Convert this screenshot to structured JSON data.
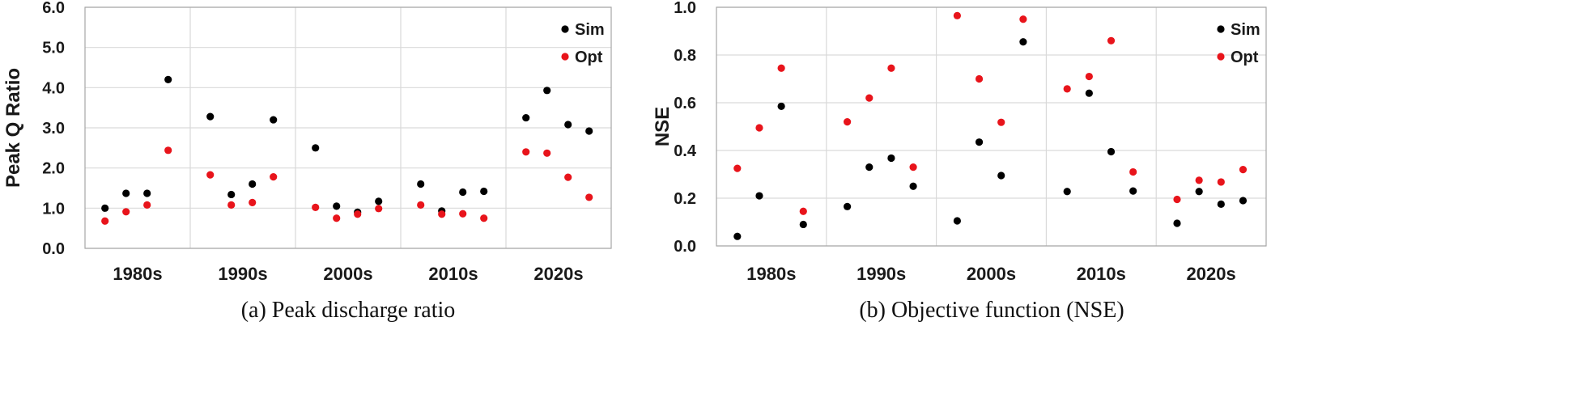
{
  "chart_data": [
    {
      "type": "scatter",
      "caption": "(a) Peak discharge ratio",
      "ylabel": "Peak Q Ratio",
      "ylim": [
        0,
        6
      ],
      "yticks": [
        "0.0",
        "1.0",
        "2.0",
        "3.0",
        "4.0",
        "5.0",
        "6.0"
      ],
      "grid": true,
      "legend_position": "top-right",
      "categories": [
        "1980s",
        "1990s",
        "2000s",
        "2010s",
        "2020s"
      ],
      "series": [
        {
          "name": "Sim",
          "color": "#000000",
          "values": [
            [
              1.0,
              1.37,
              1.37,
              4.2
            ],
            [
              3.28,
              1.34,
              1.6,
              3.2
            ],
            [
              2.5,
              1.05,
              0.9,
              1.17
            ],
            [
              1.6,
              0.93,
              1.4,
              1.42
            ],
            [
              3.25,
              3.93,
              3.08,
              2.92
            ]
          ]
        },
        {
          "name": "Opt",
          "color": "#e8141b",
          "values": [
            [
              0.68,
              0.91,
              1.08,
              2.44
            ],
            [
              1.83,
              1.08,
              1.14,
              1.78
            ],
            [
              1.02,
              0.75,
              0.85,
              0.99
            ],
            [
              1.08,
              0.85,
              0.86,
              0.75
            ],
            [
              2.4,
              2.37,
              1.77,
              1.27
            ]
          ]
        }
      ]
    },
    {
      "type": "scatter",
      "caption": "(b) Objective function (NSE)",
      "ylabel": "NSE",
      "ylim": [
        0,
        1
      ],
      "yticks": [
        "0.0",
        "0.2",
        "0.4",
        "0.6",
        "0.8",
        "1.0"
      ],
      "grid": true,
      "legend_position": "top-right",
      "categories": [
        "1980s",
        "1990s",
        "2000s",
        "2010s",
        "2020s"
      ],
      "series": [
        {
          "name": "Sim",
          "color": "#000000",
          "values": [
            [
              0.04,
              0.21,
              0.585,
              0.09
            ],
            [
              0.165,
              0.33,
              0.368,
              0.25
            ],
            [
              0.105,
              0.435,
              0.295,
              0.855
            ],
            [
              0.228,
              0.64,
              0.395,
              0.23
            ],
            [
              0.095,
              0.228,
              0.175,
              0.19
            ]
          ]
        },
        {
          "name": "Opt",
          "color": "#e8141b",
          "values": [
            [
              0.325,
              0.495,
              0.745,
              0.145
            ],
            [
              0.52,
              0.62,
              0.745,
              0.33
            ],
            [
              0.965,
              0.7,
              0.518,
              0.95
            ],
            [
              0.658,
              0.71,
              0.86,
              0.31
            ],
            [
              0.195,
              0.275,
              0.268,
              0.32
            ]
          ]
        }
      ]
    }
  ]
}
